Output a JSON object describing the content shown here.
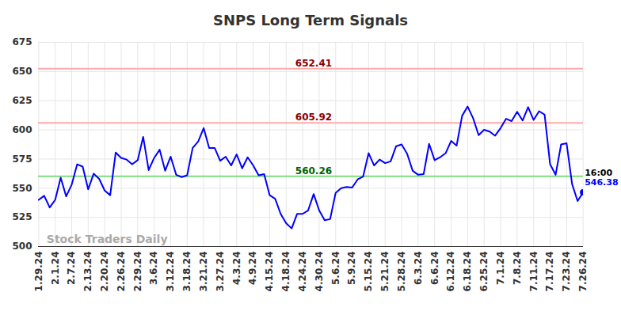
{
  "chart_data": {
    "type": "line",
    "title": "SNPS Long Term Signals",
    "categories": [
      "1.29.24",
      null,
      null,
      "2.1.24",
      null,
      null,
      "2.7.24",
      null,
      null,
      "2.13.24",
      null,
      null,
      "2.20.24",
      null,
      null,
      "2.26.24",
      null,
      null,
      "2.29.24",
      null,
      null,
      "3.6.24",
      null,
      null,
      "3.12.24",
      null,
      null,
      "3.18.24",
      null,
      null,
      "3.21.24",
      null,
      null,
      "3.27.24",
      null,
      null,
      "4.3.24",
      null,
      null,
      "4.9.24",
      null,
      null,
      "4.15.24",
      null,
      null,
      "4.18.24",
      null,
      null,
      "4.24.24",
      null,
      null,
      "4.30.24",
      null,
      null,
      "5.6.24",
      null,
      null,
      "5.9.24",
      null,
      null,
      "5.15.24",
      null,
      null,
      "5.21.24",
      null,
      null,
      "5.28.24",
      null,
      null,
      "6.3.24",
      null,
      null,
      "6.6.24",
      null,
      null,
      "6.12.24",
      null,
      null,
      "6.18.24",
      null,
      null,
      "6.25.24",
      null,
      null,
      "7.1.24",
      null,
      null,
      "7.8.24",
      null,
      null,
      "7.11.24",
      null,
      null,
      "7.17.24",
      null,
      null,
      "7.23.24",
      null,
      null,
      "7.26.24"
    ],
    "values": [
      540,
      543.5,
      533.5,
      540,
      559,
      543,
      553,
      570.5,
      568.5,
      549,
      562.5,
      558,
      548,
      544,
      580.5,
      576,
      574.5,
      570.5,
      574,
      594,
      565.5,
      576,
      583,
      565,
      577,
      561.5,
      559.5,
      561,
      584.5,
      590,
      601.5,
      584.5,
      584.5,
      573.5,
      577,
      569.5,
      579,
      567,
      576.5,
      569.5,
      561,
      562,
      544,
      541,
      528,
      520,
      515.5,
      528,
      528,
      531,
      545,
      531,
      522.5,
      523.5,
      546,
      550,
      551,
      550.5,
      557.5,
      560,
      580,
      569.5,
      574.5,
      571.5,
      573,
      586,
      587.5,
      579.5,
      565,
      561.5,
      562,
      588,
      574,
      576.5,
      580,
      590.5,
      586.5,
      612,
      620,
      610,
      595.5,
      600,
      598.5,
      595,
      601.5,
      609.5,
      607.5,
      615.5,
      608,
      619.5,
      608.5,
      616,
      613,
      570.5,
      561.5,
      587.5,
      588.5,
      553.5,
      539,
      546.38
    ],
    "color": "#0000ff",
    "ylim": [
      500,
      675
    ],
    "yticks": [
      500,
      525,
      550,
      575,
      600,
      625,
      650,
      675
    ],
    "grid": true,
    "annotations": [
      {
        "y": 652.41,
        "color": "#8b0000"
      },
      {
        "y": 605.92,
        "color": "#8b0000"
      },
      {
        "y": 560.26,
        "color": "#006400"
      }
    ],
    "end_label": "16:00",
    "watermark": "Stock Traders Daily"
  }
}
